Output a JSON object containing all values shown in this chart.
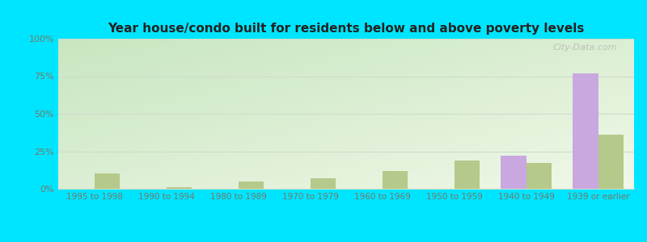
{
  "title": "Year house/condo built for residents below and above poverty levels",
  "categories": [
    "1995 to 1998",
    "1990 to 1994",
    "1980 to 1989",
    "1970 to 1979",
    "1960 to 1969",
    "1950 to 1959",
    "1940 to 1949",
    "1939 or earlier"
  ],
  "below_poverty": [
    0,
    0,
    0,
    0,
    0,
    0,
    22,
    77
  ],
  "above_poverty": [
    10,
    1,
    5,
    7,
    12,
    19,
    17,
    36
  ],
  "below_color": "#c9a8e0",
  "above_color": "#b5c98a",
  "bar_width": 0.35,
  "ylim": [
    0,
    100
  ],
  "yticks": [
    0,
    25,
    50,
    75,
    100
  ],
  "ytick_labels": [
    "0%",
    "25%",
    "50%",
    "75%",
    "100%"
  ],
  "outer_bg": "#00e5ff",
  "watermark": "City-Data.com",
  "grid_color": "#ccddcc",
  "tick_color": "#777766",
  "title_color": "#222222"
}
